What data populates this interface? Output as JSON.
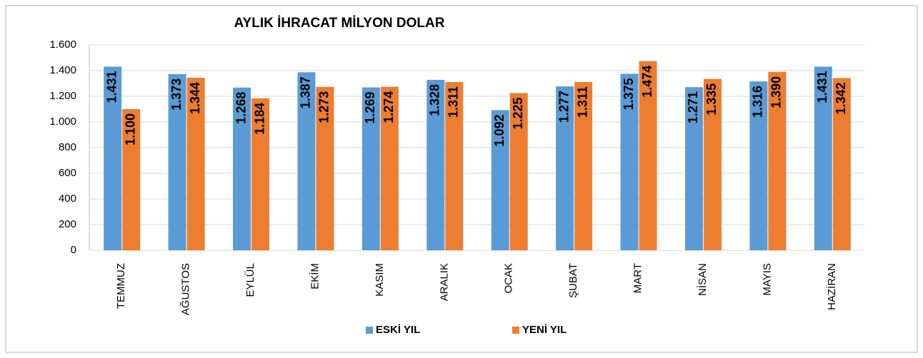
{
  "chart_data": {
    "type": "bar",
    "title": "AYLIK İHRACAT MİLYON DOLAR",
    "categories": [
      "TEMMUZ",
      "AĞUSTOS",
      "EYLÜL",
      "EKİM",
      "KASIM",
      "ARALIK",
      "OCAK",
      "ŞUBAT",
      "MART",
      "NİSAN",
      "MAYIS",
      "HAZİRAN"
    ],
    "series": [
      {
        "name": "ESKİ YIL",
        "color": "#5b9bd5",
        "values": [
          1431,
          1373,
          1268,
          1387,
          1269,
          1328,
          1092,
          1277,
          1375,
          1271,
          1316,
          1431
        ],
        "value_labels": [
          "1.431",
          "1.373",
          "1.268",
          "1.387",
          "1.269",
          "1.328",
          "1.092",
          "1.277",
          "1.375",
          "1.271",
          "1.316",
          "1.431"
        ]
      },
      {
        "name": "YENİ YIL",
        "color": "#ed7d31",
        "values": [
          1100,
          1344,
          1184,
          1273,
          1274,
          1311,
          1225,
          1311,
          1474,
          1335,
          1390,
          1342
        ],
        "value_labels": [
          "1.100",
          "1.344",
          "1.184",
          "1.273",
          "1.274",
          "1.311",
          "1.225",
          "1.311",
          "1.474",
          "1.335",
          "1.390",
          "1.342"
        ]
      }
    ],
    "ylim": [
      0,
      1600
    ],
    "yticks": [
      0,
      200,
      400,
      600,
      800,
      {
        "value": 1000,
        "label": "1.000"
      },
      {
        "value": 1200,
        "label": "1.200"
      },
      {
        "value": 1400,
        "label": "1.400"
      },
      {
        "value": 1600,
        "label": "1.600"
      }
    ],
    "grid": true,
    "legend": "bottom"
  }
}
